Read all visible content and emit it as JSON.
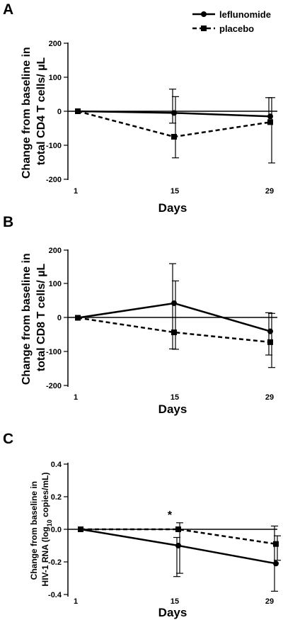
{
  "legend": {
    "entries": [
      {
        "name": "leflunomide",
        "marker": "circle",
        "dash": "solid"
      },
      {
        "name": "placebo",
        "marker": "square",
        "dash": "dashed"
      }
    ],
    "placement": "top-right"
  },
  "colors": {
    "line": "#000000",
    "background": "#ffffff"
  },
  "chart_data": [
    {
      "panel": "A",
      "type": "line",
      "xlabel": "Days",
      "ylabel_lines": [
        "Change from baseline in",
        "total CD4 T cells/ µL"
      ],
      "x_ticks": [
        "1",
        "15",
        "29"
      ],
      "y_ticks": [
        "200",
        "100",
        "0",
        "-100",
        "-200"
      ],
      "ylim": [
        -200,
        200
      ],
      "zero_line": true,
      "grid": false,
      "annotations": [],
      "series": [
        {
          "name": "leflunomide",
          "x": [
            1,
            15,
            29
          ],
          "y": [
            0,
            -5,
            -15
          ],
          "err_low": [
            0,
            30,
            20
          ],
          "err_high": [
            0,
            70,
            55
          ]
        },
        {
          "name": "placebo",
          "x": [
            1,
            15,
            29
          ],
          "y": [
            0,
            -75,
            -32
          ],
          "err_low": [
            0,
            62,
            120
          ],
          "err_high": [
            0,
            118,
            72
          ]
        }
      ]
    },
    {
      "panel": "B",
      "type": "line",
      "xlabel": "Days",
      "ylabel_lines": [
        "Change from baseline in",
        "total CD8 T cells/ µL"
      ],
      "x_ticks": [
        "1",
        "15",
        "29"
      ],
      "y_ticks": [
        "200",
        "100",
        "0",
        "-100",
        "-200"
      ],
      "ylim": [
        -200,
        200
      ],
      "zero_line": true,
      "grid": false,
      "annotations": [],
      "series": [
        {
          "name": "leflunomide",
          "x": [
            1,
            15,
            29
          ],
          "y": [
            0,
            43,
            -40
          ],
          "err_low": [
            0,
            135,
            70
          ],
          "err_high": [
            0,
            117,
            55
          ]
        },
        {
          "name": "placebo",
          "x": [
            1,
            15,
            29
          ],
          "y": [
            0,
            -43,
            -72
          ],
          "err_low": [
            0,
            50,
            75
          ],
          "err_high": [
            0,
            152,
            85
          ]
        }
      ]
    },
    {
      "panel": "C",
      "type": "line",
      "xlabel": "Days",
      "ylabel_lines": [
        "Change from baseline in",
        "HIV-1 RNA (log",
        "10",
        " copies/mL)"
      ],
      "x_ticks": [
        "1",
        "15",
        "29"
      ],
      "y_ticks": [
        "0.4",
        "0.2",
        "0.0",
        "-0.2",
        "-0.4"
      ],
      "ylim": [
        -0.4,
        0.4
      ],
      "zero_line": true,
      "grid": false,
      "annotations": [
        {
          "text": "*",
          "x": 15
        }
      ],
      "series": [
        {
          "name": "leflunomide",
          "x": [
            1,
            15,
            29
          ],
          "y": [
            0,
            -0.1,
            -0.21
          ],
          "err_low": [
            0,
            0.19,
            0.17
          ],
          "err_high": [
            0,
            0.05,
            0.23
          ]
        },
        {
          "name": "placebo",
          "x": [
            1,
            15,
            29
          ],
          "y": [
            0,
            0.0,
            -0.09
          ],
          "err_low": [
            0,
            0.27,
            0.1
          ],
          "err_high": [
            0,
            0.04,
            0.05
          ]
        }
      ]
    }
  ]
}
